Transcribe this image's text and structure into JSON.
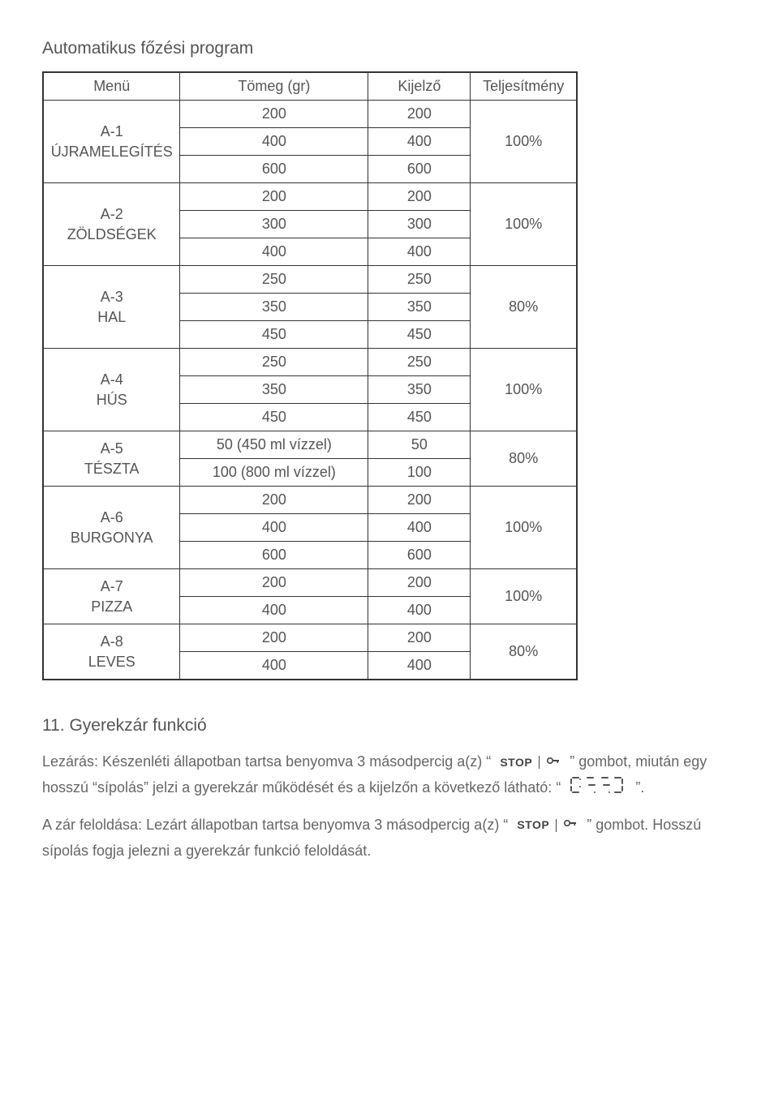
{
  "section1_title": "Automatikus főzési program",
  "table": {
    "headers": {
      "menu": "Menü",
      "mass": "Tömeg (gr)",
      "display": "Kijelző",
      "power": "Teljesítmény"
    },
    "groups": [
      {
        "menu_code": "A-1",
        "menu_name": "ÚJRAMELEGÍTÉS",
        "power": "100%",
        "rows": [
          {
            "mass": "200",
            "display": "200"
          },
          {
            "mass": "400",
            "display": "400"
          },
          {
            "mass": "600",
            "display": "600"
          }
        ]
      },
      {
        "menu_code": "A-2",
        "menu_name": "ZÖLDSÉGEK",
        "power": "100%",
        "rows": [
          {
            "mass": "200",
            "display": "200"
          },
          {
            "mass": "300",
            "display": "300"
          },
          {
            "mass": "400",
            "display": "400"
          }
        ]
      },
      {
        "menu_code": "A-3",
        "menu_name": "HAL",
        "power": "80%",
        "rows": [
          {
            "mass": "250",
            "display": "250"
          },
          {
            "mass": "350",
            "display": "350"
          },
          {
            "mass": "450",
            "display": "450"
          }
        ]
      },
      {
        "menu_code": "A-4",
        "menu_name": "HÚS",
        "power": "100%",
        "rows": [
          {
            "mass": "250",
            "display": "250"
          },
          {
            "mass": "350",
            "display": "350"
          },
          {
            "mass": "450",
            "display": "450"
          }
        ]
      },
      {
        "menu_code": "A-5",
        "menu_name": "TÉSZTA",
        "power": "80%",
        "rows": [
          {
            "mass": "50 (450 ml vízzel)",
            "display": "50"
          },
          {
            "mass": "100 (800 ml vízzel)",
            "display": "100"
          }
        ]
      },
      {
        "menu_code": "A-6",
        "menu_name": "BURGONYA",
        "power": "100%",
        "rows": [
          {
            "mass": "200",
            "display": "200"
          },
          {
            "mass": "400",
            "display": "400"
          },
          {
            "mass": "600",
            "display": "600"
          }
        ]
      },
      {
        "menu_code": "A-7",
        "menu_name": "PIZZA",
        "power": "100%",
        "rows": [
          {
            "mass": "200",
            "display": "200"
          },
          {
            "mass": "400",
            "display": "400"
          }
        ]
      },
      {
        "menu_code": "A-8",
        "menu_name": "LEVES",
        "power": "80%",
        "rows": [
          {
            "mass": "200",
            "display": "200"
          },
          {
            "mass": "400",
            "display": "400"
          }
        ]
      }
    ]
  },
  "section2_title": "11. Gyerekzár funkció",
  "paragraphs": {
    "p1_a": "Lezárás: Készenléti állapotban tartsa benyomva 3 másodpercig a(z) “",
    "p1_b": "” gombot, miután egy hosszú “sípolás” jelzi a gyerekzár működését és a kijelzőn a következő látható: “",
    "p1_c": "”.",
    "p2_a": "A zár feloldása: Lezárt állapotban tartsa benyomva 3 másodpercig a(z) “",
    "p2_b": "” gombot. Hosszú sípolás fogja jelezni a gyerekzár funkció feloldását."
  },
  "icons": {
    "stop_label": "STOP"
  }
}
